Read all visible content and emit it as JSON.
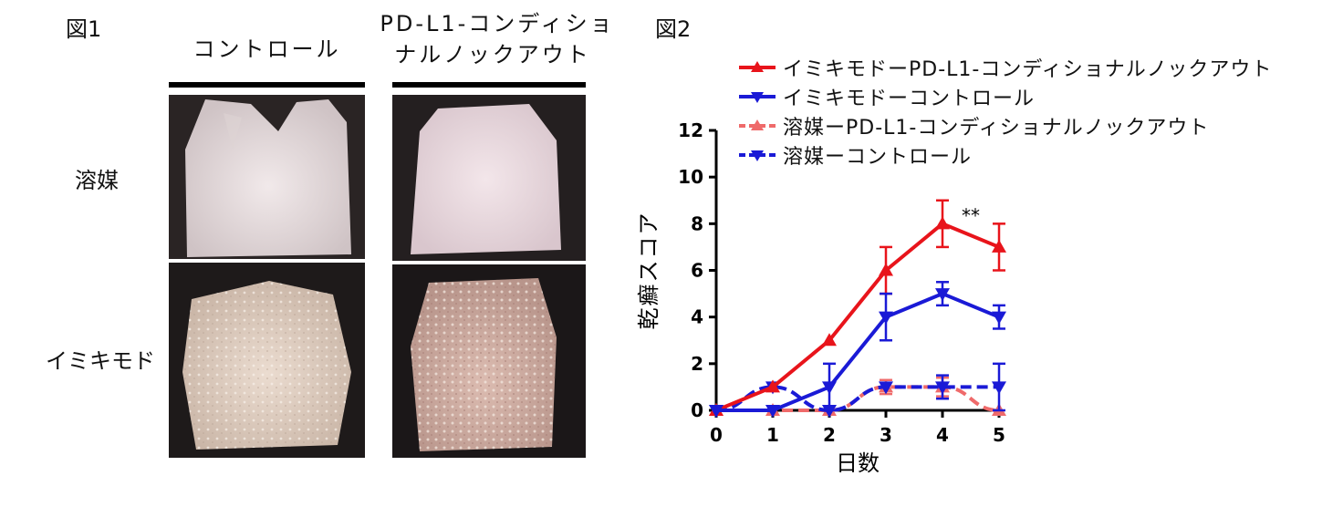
{
  "figure1": {
    "label": "図1",
    "col_control": "コントロール",
    "col_ko_line1": "PD-L1-コンディショ",
    "col_ko_line2": "ナルノックアウト",
    "row_vehicle": "溶媒",
    "row_imiquimod": "イミキモド"
  },
  "figure2": {
    "label": "図2"
  },
  "colors": {
    "red": "#e8141b",
    "blue": "#1a1ad6",
    "light_red": "#ef6a6a"
  },
  "chart_data": {
    "type": "line",
    "x": [
      0,
      1,
      2,
      3,
      4,
      5
    ],
    "xlabel": "日数",
    "ylabel": "乾癬スコア",
    "xlim": [
      0,
      5
    ],
    "ylim": [
      0,
      12
    ],
    "yticks": [
      0,
      2,
      4,
      6,
      8,
      10,
      12
    ],
    "annotation": "**",
    "legend_position": "top",
    "series": [
      {
        "name": "イミキモドーPD-L1-コンディショナルノックアウト",
        "values": [
          0,
          1,
          3,
          6,
          8,
          7
        ],
        "errors": [
          0,
          0,
          0,
          1,
          1,
          1
        ],
        "color": "#e8141b",
        "style": "solid",
        "marker": "triangle-up"
      },
      {
        "name": "イミキモドーコントロール",
        "values": [
          0,
          0,
          1,
          4,
          5,
          4
        ],
        "errors": [
          0,
          0,
          1,
          1,
          0.5,
          0.5
        ],
        "color": "#1a1ad6",
        "style": "solid",
        "marker": "triangle-down"
      },
      {
        "name": "溶媒ーPD-L1-コンディショナルノックアウト",
        "values": [
          0,
          0,
          0,
          1,
          1,
          0
        ],
        "errors": [
          0,
          0,
          0,
          0.3,
          0.4,
          0
        ],
        "color": "#ef6a6a",
        "style": "dashed",
        "marker": "triangle-up"
      },
      {
        "name": "溶媒ーコントロール",
        "values": [
          0,
          1,
          0,
          1,
          1,
          1
        ],
        "errors": [
          0,
          0,
          0,
          0,
          0.5,
          1
        ],
        "color": "#1a1ad6",
        "style": "dashed",
        "marker": "triangle-down"
      }
    ]
  }
}
